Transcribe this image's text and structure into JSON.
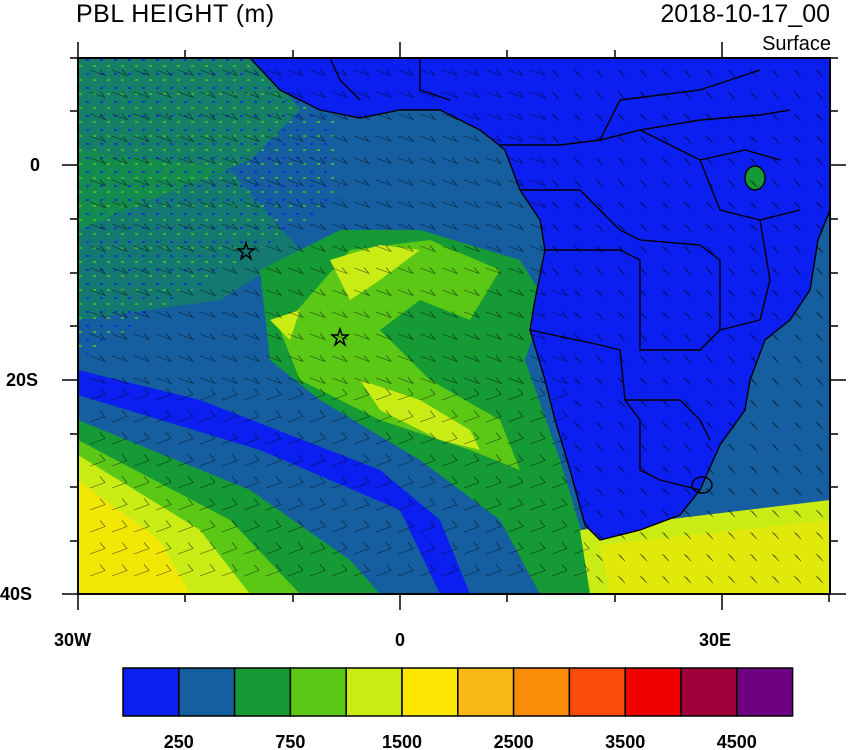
{
  "title": "PBL HEIGHT (m)",
  "datetime": "2018-10-17_00",
  "level": "Surface",
  "lat_labels": [
    "0",
    "20S",
    "40S"
  ],
  "lon_labels": [
    "30W",
    "0",
    "30E"
  ],
  "colorbar": {
    "colors": [
      "#0a1ff0",
      "#155fa0",
      "#159a35",
      "#5ac814",
      "#c8ec14",
      "#fae600",
      "#fab914",
      "#fa8c0a",
      "#fa4b0a",
      "#f00000",
      "#a0003c",
      "#6e0082"
    ],
    "labels": [
      "250",
      "750",
      "1500",
      "2500",
      "3500",
      "4500"
    ]
  },
  "markers": [
    "star",
    "star"
  ]
}
